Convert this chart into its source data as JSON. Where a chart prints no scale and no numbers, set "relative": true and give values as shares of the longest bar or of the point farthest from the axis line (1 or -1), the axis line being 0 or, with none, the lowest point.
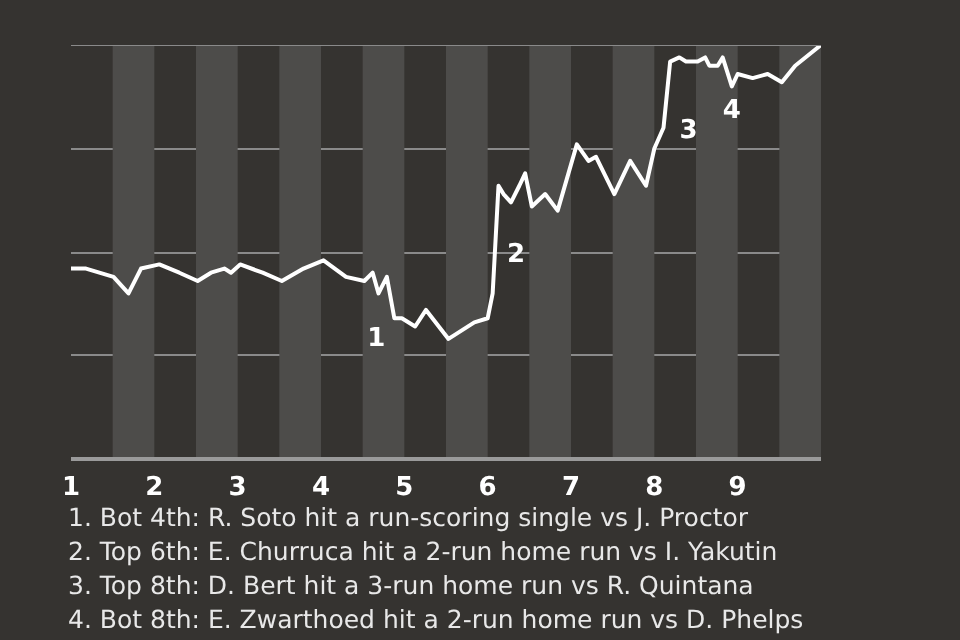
{
  "chart_data": {
    "type": "line",
    "relative": true,
    "grid": "y",
    "xlim": [
      1,
      10
    ],
    "xticks": [
      1,
      2,
      3,
      4,
      5,
      6,
      7,
      8,
      9
    ],
    "x": [
      1.0,
      1.18,
      1.51,
      1.69,
      1.84,
      2.06,
      2.3,
      2.52,
      2.68,
      2.84,
      2.92,
      3.03,
      3.3,
      3.53,
      3.79,
      4.03,
      4.3,
      4.52,
      4.62,
      4.69,
      4.79,
      4.88,
      4.97,
      5.13,
      5.26,
      5.53,
      5.84,
      6.0,
      6.06,
      6.13,
      6.19,
      6.28,
      6.38,
      6.45,
      6.53,
      6.69,
      6.84,
      7.07,
      7.21,
      7.3,
      7.52,
      7.71,
      7.9,
      8.0,
      8.11,
      8.19,
      8.3,
      8.38,
      8.52,
      8.61,
      8.66,
      8.76,
      8.82,
      8.93,
      9.0,
      9.18,
      9.36,
      9.53,
      9.69,
      10.0
    ],
    "series": [
      {
        "color": "#ffffff",
        "values": [
          0.46,
          0.46,
          0.44,
          0.4,
          0.46,
          0.47,
          0.45,
          0.43,
          0.45,
          0.46,
          0.45,
          0.47,
          0.45,
          0.43,
          0.46,
          0.48,
          0.44,
          0.43,
          0.45,
          0.4,
          0.44,
          0.34,
          0.34,
          0.32,
          0.36,
          0.29,
          0.33,
          0.34,
          0.4,
          0.66,
          0.64,
          0.62,
          0.66,
          0.69,
          0.61,
          0.64,
          0.6,
          0.76,
          0.72,
          0.73,
          0.64,
          0.72,
          0.66,
          0.75,
          0.8,
          0.96,
          0.97,
          0.96,
          0.96,
          0.97,
          0.95,
          0.95,
          0.97,
          0.9,
          0.93,
          0.92,
          0.93,
          0.91,
          0.95,
          1.0
        ]
      }
    ],
    "bands": [
      {
        "axis": "x",
        "from": 1.5,
        "to": 2,
        "color": "#4d4c4a"
      },
      {
        "axis": "x",
        "from": 2.5,
        "to": 3,
        "color": "#4d4c4a"
      },
      {
        "axis": "x",
        "from": 3.5,
        "to": 4,
        "color": "#4d4c4a"
      },
      {
        "axis": "x",
        "from": 4.5,
        "to": 5,
        "color": "#4d4c4a"
      },
      {
        "axis": "x",
        "from": 5.5,
        "to": 6,
        "color": "#4d4c4a"
      },
      {
        "axis": "x",
        "from": 6.5,
        "to": 7,
        "color": "#4d4c4a"
      },
      {
        "axis": "x",
        "from": 7.5,
        "to": 8,
        "color": "#4d4c4a"
      },
      {
        "axis": "x",
        "from": 8.5,
        "to": 9,
        "color": "#4d4c4a"
      },
      {
        "axis": "x",
        "from": 9.5,
        "to": 10,
        "color": "#4d4c4a"
      }
    ],
    "annotations": [
      {
        "text": "1",
        "x": 4.88,
        "y": 0.34
      },
      {
        "text": "2",
        "x": 6.1,
        "y": 0.5
      },
      {
        "text": "3",
        "x": 8.17,
        "y": 0.8
      },
      {
        "text": "4",
        "x": 8.93,
        "y": 0.9
      },
      "1. Bot 4th: R. Soto hit a run-scoring single vs J. Proctor",
      "2. Top 6th: E. Churruca hit a 2-run home run vs I. Yakutin",
      "3. Top 8th: D. Bert hit a 3-run home run vs R. Quintana",
      "4. Bot 8th: E. Zwarthoed hit a 2-run home run vs D. Phelps"
    ]
  }
}
